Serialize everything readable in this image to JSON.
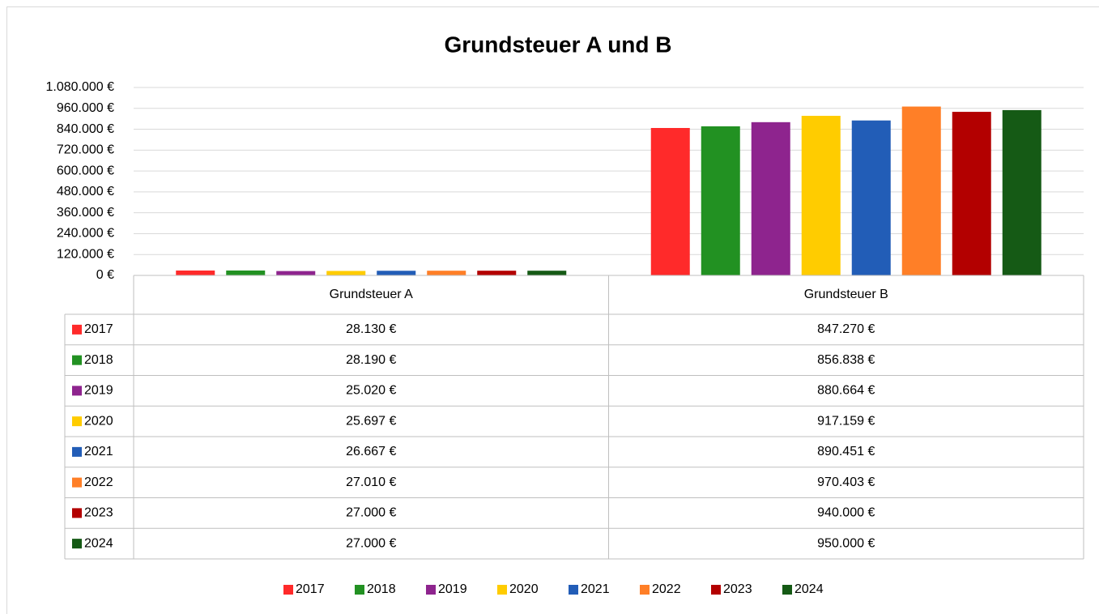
{
  "chart_data": {
    "type": "bar",
    "title": "Grundsteuer A und B",
    "categories": [
      "Grundsteuer A",
      "Grundsteuer B"
    ],
    "series": [
      {
        "name": "2017",
        "color": "#ff2a2a",
        "values": [
          28130,
          847270
        ],
        "value_labels": [
          "28.130 €",
          "847.270 €"
        ]
      },
      {
        "name": "2018",
        "color": "#229122",
        "values": [
          28190,
          856838
        ],
        "value_labels": [
          "28.190 €",
          "856.838 €"
        ]
      },
      {
        "name": "2019",
        "color": "#8e248e",
        "values": [
          25020,
          880664
        ],
        "value_labels": [
          "25.020 €",
          "880.664 €"
        ]
      },
      {
        "name": "2020",
        "color": "#ffcc00",
        "values": [
          25697,
          917159
        ],
        "value_labels": [
          "25.697 €",
          "917.159 €"
        ]
      },
      {
        "name": "2021",
        "color": "#225db7",
        "values": [
          26667,
          890451
        ],
        "value_labels": [
          "26.667 €",
          "890.451 €"
        ]
      },
      {
        "name": "2022",
        "color": "#ff7f27",
        "values": [
          27010,
          970403
        ],
        "value_labels": [
          "27.010 €",
          "970.403 €"
        ]
      },
      {
        "name": "2023",
        "color": "#b30000",
        "values": [
          27000,
          940000
        ],
        "value_labels": [
          "27.000 €",
          "940.000 €"
        ]
      },
      {
        "name": "2024",
        "color": "#155a15",
        "values": [
          27000,
          950000
        ],
        "value_labels": [
          "27.000 €",
          "950.000 €"
        ]
      }
    ],
    "ylim": [
      0,
      1080000
    ],
    "yticks": [
      {
        "value": 0,
        "label": "0 €"
      },
      {
        "value": 120000,
        "label": "120.000 €"
      },
      {
        "value": 240000,
        "label": "240.000 €"
      },
      {
        "value": 360000,
        "label": "360.000 €"
      },
      {
        "value": 480000,
        "label": "480.000 €"
      },
      {
        "value": 600000,
        "label": "600.000 €"
      },
      {
        "value": 720000,
        "label": "720.000 €"
      },
      {
        "value": 840000,
        "label": "840.000 €"
      },
      {
        "value": 960000,
        "label": "960.000 €"
      },
      {
        "value": 1080000,
        "label": "1.080.000 €"
      }
    ],
    "grid": true,
    "legend": "bottom"
  }
}
